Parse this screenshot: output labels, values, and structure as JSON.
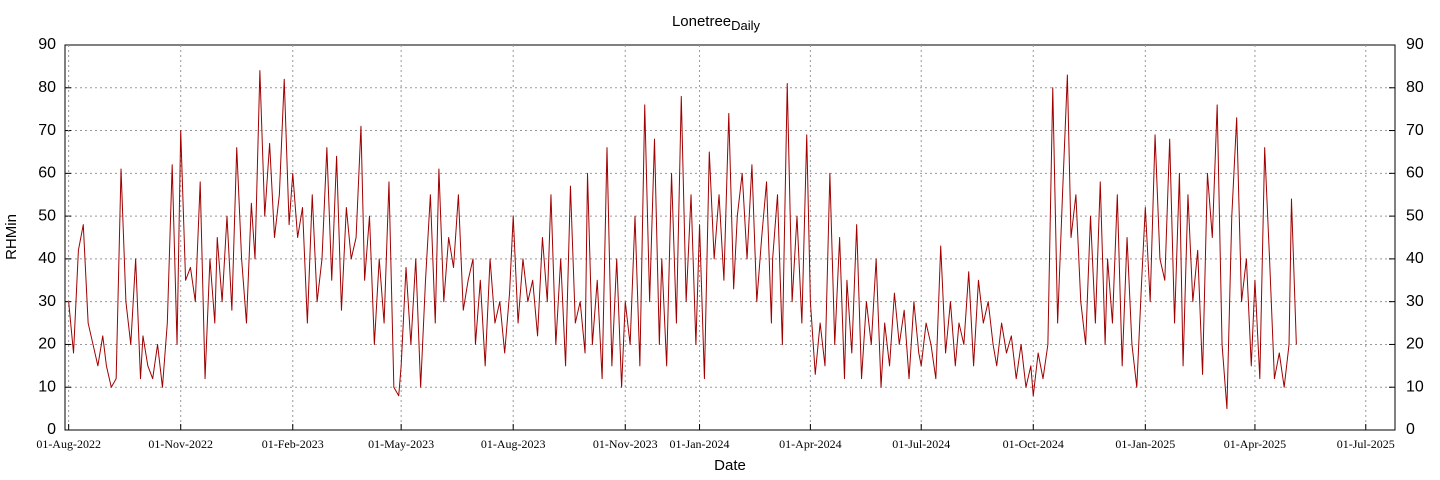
{
  "chart_data": {
    "type": "line",
    "title": "Lonetree",
    "title_subscript": "Daily",
    "x_label": "Date",
    "y_label": "RHMin",
    "xlim": [
      "2022-07-29",
      "2025-07-25"
    ],
    "xticks": [
      {
        "value": "2022-08-01",
        "label": "01-Aug-2022"
      },
      {
        "value": "2022-11-01",
        "label": "01-Nov-2022"
      },
      {
        "value": "2023-02-01",
        "label": "01-Feb-2023"
      },
      {
        "value": "2023-05-01",
        "label": "01-May-2023"
      },
      {
        "value": "2023-08-01",
        "label": "01-Aug-2023"
      },
      {
        "value": "2023-11-01",
        "label": "01-Nov-2023"
      },
      {
        "value": "2024-01-01",
        "label": "01-Jan-2024"
      },
      {
        "value": "2024-04-01",
        "label": "01-Apr-2024"
      },
      {
        "value": "2024-07-01",
        "label": "01-Jul-2024"
      },
      {
        "value": "2024-10-01",
        "label": "01-Oct-2024"
      },
      {
        "value": "2025-01-01",
        "label": "01-Jan-2025"
      },
      {
        "value": "2025-04-01",
        "label": "01-Apr-2025"
      },
      {
        "value": "2025-07-01",
        "label": "01-Jul-2025"
      }
    ],
    "ylim": [
      0,
      90
    ],
    "yticks": [
      0,
      10,
      20,
      30,
      40,
      50,
      60,
      70,
      80,
      90
    ],
    "grid": true,
    "right_axis": true,
    "x": [
      "2022-08-01",
      "2022-08-05",
      "2022-08-09",
      "2022-08-13",
      "2022-08-17",
      "2022-08-21",
      "2022-08-25",
      "2022-08-29",
      "2022-09-01",
      "2022-09-05",
      "2022-09-09",
      "2022-09-13",
      "2022-09-17",
      "2022-09-21",
      "2022-09-25",
      "2022-09-29",
      "2022-10-01",
      "2022-10-05",
      "2022-10-09",
      "2022-10-13",
      "2022-10-17",
      "2022-10-21",
      "2022-10-25",
      "2022-10-29",
      "2022-11-01",
      "2022-11-05",
      "2022-11-09",
      "2022-11-13",
      "2022-11-17",
      "2022-11-21",
      "2022-11-25",
      "2022-11-29",
      "2022-12-01",
      "2022-12-05",
      "2022-12-09",
      "2022-12-13",
      "2022-12-17",
      "2022-12-21",
      "2022-12-25",
      "2022-12-29",
      "2023-01-01",
      "2023-01-05",
      "2023-01-09",
      "2023-01-13",
      "2023-01-17",
      "2023-01-21",
      "2023-01-25",
      "2023-01-29",
      "2023-02-01",
      "2023-02-05",
      "2023-02-09",
      "2023-02-13",
      "2023-02-17",
      "2023-02-21",
      "2023-02-25",
      "2023-03-01",
      "2023-03-05",
      "2023-03-09",
      "2023-03-13",
      "2023-03-17",
      "2023-03-21",
      "2023-03-25",
      "2023-03-29",
      "2023-04-01",
      "2023-04-05",
      "2023-04-09",
      "2023-04-13",
      "2023-04-17",
      "2023-04-21",
      "2023-04-25",
      "2023-04-29",
      "2023-05-01",
      "2023-05-05",
      "2023-05-09",
      "2023-05-13",
      "2023-05-17",
      "2023-05-21",
      "2023-05-25",
      "2023-05-29",
      "2023-06-01",
      "2023-06-05",
      "2023-06-09",
      "2023-06-13",
      "2023-06-17",
      "2023-06-21",
      "2023-06-25",
      "2023-06-29",
      "2023-07-01",
      "2023-07-05",
      "2023-07-09",
      "2023-07-13",
      "2023-07-17",
      "2023-07-21",
      "2023-07-25",
      "2023-07-29",
      "2023-08-01",
      "2023-08-05",
      "2023-08-09",
      "2023-08-13",
      "2023-08-17",
      "2023-08-21",
      "2023-08-25",
      "2023-08-29",
      "2023-09-01",
      "2023-09-05",
      "2023-09-09",
      "2023-09-13",
      "2023-09-17",
      "2023-09-21",
      "2023-09-25",
      "2023-09-29",
      "2023-10-01",
      "2023-10-05",
      "2023-10-09",
      "2023-10-13",
      "2023-10-17",
      "2023-10-21",
      "2023-10-25",
      "2023-10-29",
      "2023-11-01",
      "2023-11-05",
      "2023-11-09",
      "2023-11-13",
      "2023-11-17",
      "2023-11-21",
      "2023-11-25",
      "2023-11-29",
      "2023-12-01",
      "2023-12-05",
      "2023-12-09",
      "2023-12-13",
      "2023-12-17",
      "2023-12-21",
      "2023-12-25",
      "2023-12-29",
      "2024-01-01",
      "2024-01-05",
      "2024-01-09",
      "2024-01-13",
      "2024-01-17",
      "2024-01-21",
      "2024-01-25",
      "2024-01-29",
      "2024-02-01",
      "2024-02-05",
      "2024-02-09",
      "2024-02-13",
      "2024-02-17",
      "2024-02-21",
      "2024-02-25",
      "2024-02-29",
      "2024-03-01",
      "2024-03-05",
      "2024-03-09",
      "2024-03-13",
      "2024-03-17",
      "2024-03-21",
      "2024-03-25",
      "2024-03-29",
      "2024-04-01",
      "2024-04-05",
      "2024-04-09",
      "2024-04-13",
      "2024-04-17",
      "2024-04-21",
      "2024-04-25",
      "2024-04-29",
      "2024-05-01",
      "2024-05-05",
      "2024-05-09",
      "2024-05-13",
      "2024-05-17",
      "2024-05-21",
      "2024-05-25",
      "2024-05-29",
      "2024-06-01",
      "2024-06-05",
      "2024-06-09",
      "2024-06-13",
      "2024-06-17",
      "2024-06-21",
      "2024-06-25",
      "2024-06-29",
      "2024-07-01",
      "2024-07-05",
      "2024-07-09",
      "2024-07-13",
      "2024-07-17",
      "2024-07-21",
      "2024-07-25",
      "2024-07-29",
      "2024-08-01",
      "2024-08-05",
      "2024-08-09",
      "2024-08-13",
      "2024-08-17",
      "2024-08-21",
      "2024-08-25",
      "2024-08-29",
      "2024-09-01",
      "2024-09-05",
      "2024-09-09",
      "2024-09-13",
      "2024-09-17",
      "2024-09-21",
      "2024-09-25",
      "2024-09-29",
      "2024-10-01",
      "2024-10-05",
      "2024-10-09",
      "2024-10-13",
      "2024-10-17",
      "2024-10-21",
      "2024-10-25",
      "2024-10-29",
      "2024-11-01",
      "2024-11-05",
      "2024-11-09",
      "2024-11-13",
      "2024-11-17",
      "2024-11-21",
      "2024-11-25",
      "2024-11-29",
      "2024-12-01",
      "2024-12-05",
      "2024-12-09",
      "2024-12-13",
      "2024-12-17",
      "2024-12-21",
      "2024-12-25",
      "2024-12-29",
      "2025-01-01",
      "2025-01-05",
      "2025-01-09",
      "2025-01-13",
      "2025-01-17",
      "2025-01-21",
      "2025-01-25",
      "2025-01-29",
      "2025-02-01",
      "2025-02-05",
      "2025-02-09",
      "2025-02-13",
      "2025-02-17",
      "2025-02-21",
      "2025-02-25",
      "2025-03-01",
      "2025-03-05",
      "2025-03-09",
      "2025-03-13",
      "2025-03-17",
      "2025-03-21",
      "2025-03-25",
      "2025-03-29",
      "2025-04-01",
      "2025-04-05",
      "2025-04-09",
      "2025-04-13",
      "2025-04-17",
      "2025-04-21",
      "2025-04-25",
      "2025-04-29",
      "2025-05-01",
      "2025-05-05"
    ],
    "series": [
      {
        "name": "RHMin",
        "color": "#a00000",
        "values": [
          30,
          18,
          42,
          48,
          25,
          20,
          15,
          22,
          15,
          10,
          12,
          61,
          30,
          20,
          40,
          12,
          22,
          15,
          12,
          20,
          10,
          25,
          62,
          20,
          70,
          35,
          38,
          30,
          58,
          12,
          40,
          25,
          45,
          30,
          50,
          28,
          66,
          40,
          25,
          53,
          40,
          84,
          50,
          67,
          45,
          55,
          82,
          48,
          60,
          45,
          52,
          25,
          55,
          30,
          40,
          66,
          35,
          64,
          28,
          52,
          40,
          45,
          71,
          35,
          50,
          20,
          40,
          25,
          58,
          10,
          8,
          15,
          38,
          20,
          40,
          10,
          35,
          55,
          25,
          61,
          30,
          45,
          38,
          55,
          28,
          35,
          40,
          20,
          35,
          15,
          40,
          25,
          30,
          18,
          32,
          50,
          25,
          40,
          30,
          35,
          22,
          45,
          30,
          55,
          20,
          40,
          15,
          57,
          25,
          30,
          18,
          60,
          20,
          35,
          12,
          66,
          15,
          40,
          10,
          30,
          20,
          50,
          15,
          76,
          30,
          68,
          20,
          40,
          15,
          60,
          25,
          78,
          30,
          55,
          20,
          48,
          12,
          65,
          40,
          55,
          35,
          74,
          33,
          50,
          60,
          40,
          62,
          30,
          45,
          58,
          25,
          40,
          55,
          20,
          81,
          30,
          50,
          25,
          69,
          30,
          13,
          25,
          15,
          60,
          20,
          45,
          12,
          35,
          18,
          48,
          12,
          30,
          20,
          40,
          10,
          25,
          15,
          32,
          20,
          28,
          12,
          30,
          18,
          15,
          25,
          20,
          12,
          43,
          18,
          30,
          15,
          25,
          20,
          37,
          15,
          35,
          25,
          30,
          20,
          15,
          25,
          18,
          22,
          12,
          20,
          10,
          15,
          8,
          18,
          12,
          20,
          80,
          25,
          55,
          83,
          45,
          55,
          30,
          20,
          50,
          25,
          58,
          20,
          40,
          25,
          55,
          15,
          45,
          20,
          10,
          35,
          52,
          30,
          69,
          40,
          35,
          68,
          25,
          60,
          15,
          55,
          30,
          42,
          13,
          60,
          45,
          76,
          20,
          5,
          50,
          73,
          30,
          40,
          15,
          35,
          12,
          66,
          40,
          12,
          18,
          10,
          20,
          54,
          20
        ]
      }
    ]
  }
}
